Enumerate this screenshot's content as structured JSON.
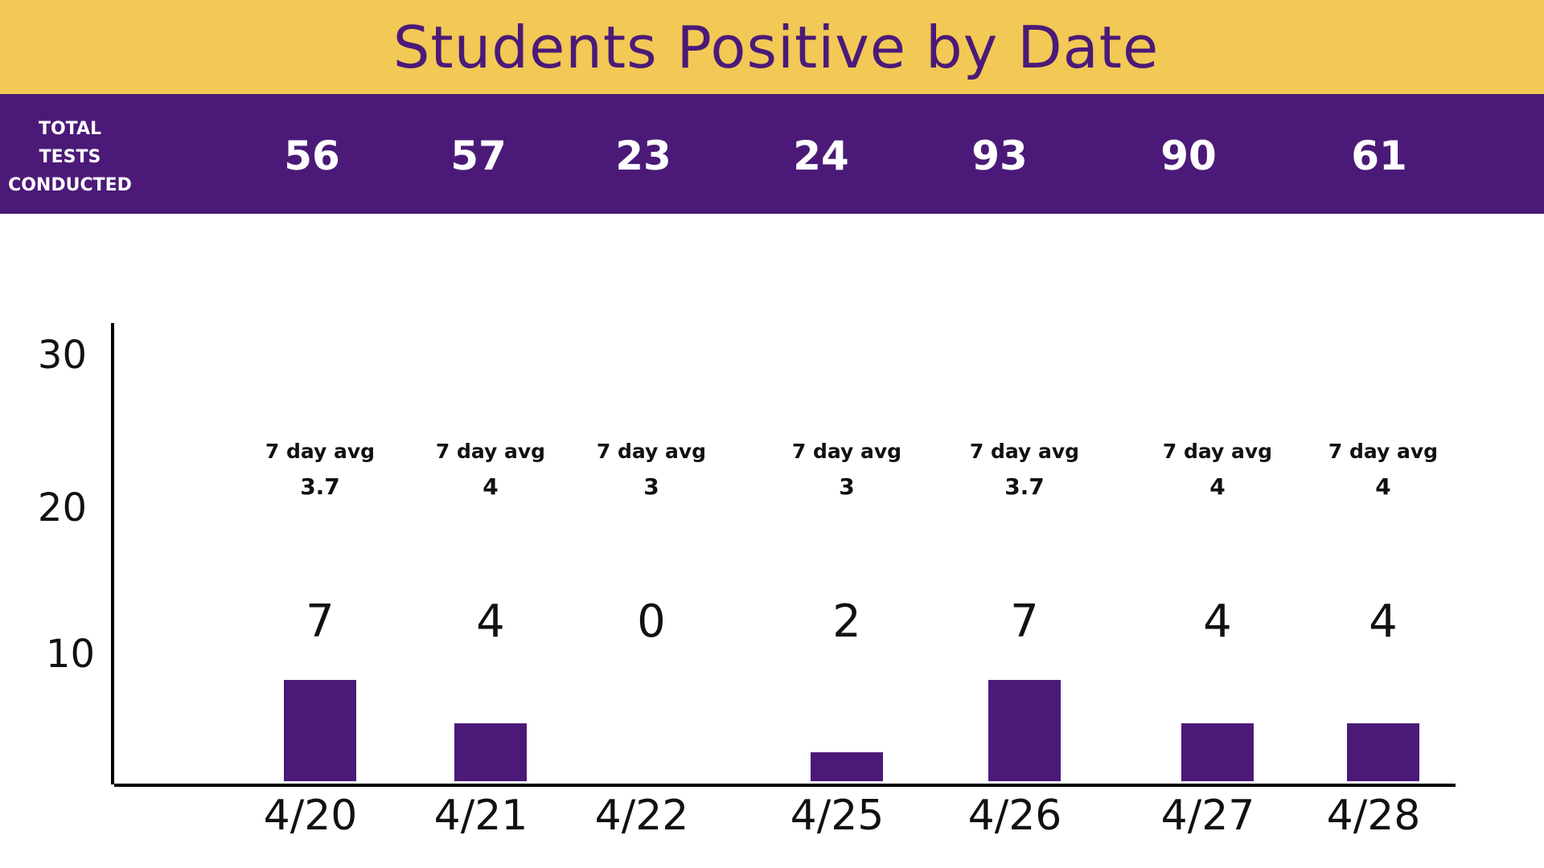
{
  "title": "Students Positive by Date",
  "tests_label": [
    "TOTAL",
    "TESTS",
    "CONDUCTED"
  ],
  "colors": {
    "title_bar": "#F2C955",
    "band": "#4B1A78",
    "bar": "#4B1A78",
    "title_text": "#4B1A78"
  },
  "chart_data": {
    "type": "bar",
    "title": "Students Positive by Date",
    "categories": [
      "4/20",
      "4/21",
      "4/22",
      "4/25",
      "4/26",
      "4/27",
      "4/28"
    ],
    "values": [
      7,
      4,
      0,
      2,
      7,
      4,
      4
    ],
    "total_tests": [
      56,
      57,
      23,
      24,
      93,
      90,
      61
    ],
    "seven_day_avg_label": "7 day avg",
    "seven_day_avg": [
      "3.7",
      "4",
      "3",
      "3",
      "3.7",
      "4",
      "4"
    ],
    "y_ticks": [
      "10",
      "20",
      "30"
    ],
    "xlabel": "",
    "ylabel": "",
    "grid": false,
    "legend": "none"
  }
}
